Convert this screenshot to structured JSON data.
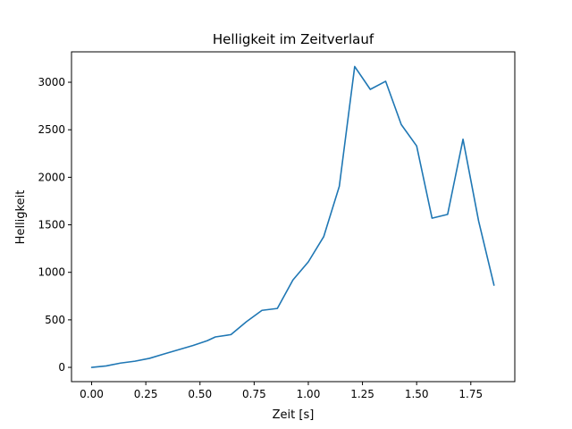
{
  "chart_data": {
    "type": "line",
    "title": "Helligkeit im Zeitverlauf",
    "xlabel": "Zeit [s]",
    "ylabel": "Helligkeit",
    "xlim": [
      -0.093,
      1.953
    ],
    "ylim": [
      -150,
      3320
    ],
    "xticks": [
      0.0,
      0.25,
      0.5,
      0.75,
      1.0,
      1.25,
      1.5,
      1.75
    ],
    "xtick_labels": [
      "0.00",
      "0.25",
      "0.50",
      "0.75",
      "1.00",
      "1.25",
      "1.50",
      "1.75"
    ],
    "yticks": [
      0,
      500,
      1000,
      1500,
      2000,
      2500,
      3000
    ],
    "ytick_labels": [
      "0",
      "500",
      "1000",
      "1500",
      "2000",
      "2500",
      "3000"
    ],
    "grid": false,
    "legend": "none",
    "series": [
      {
        "color": "#1f77b4",
        "x": [
          0.0,
          0.067,
          0.133,
          0.2,
          0.267,
          0.333,
          0.4,
          0.467,
          0.533,
          0.571,
          0.643,
          0.714,
          0.786,
          0.857,
          0.929,
          1.0,
          1.071,
          1.143,
          1.214,
          1.286,
          1.357,
          1.429,
          1.5,
          1.571,
          1.643,
          1.714,
          1.786,
          1.857
        ],
        "y": [
          0,
          15,
          45,
          65,
          95,
          140,
          185,
          230,
          280,
          320,
          345,
          480,
          600,
          620,
          920,
          1110,
          1375,
          1905,
          3165,
          2925,
          3010,
          2555,
          2330,
          1570,
          1610,
          2400,
          1540,
          865
        ]
      }
    ]
  }
}
